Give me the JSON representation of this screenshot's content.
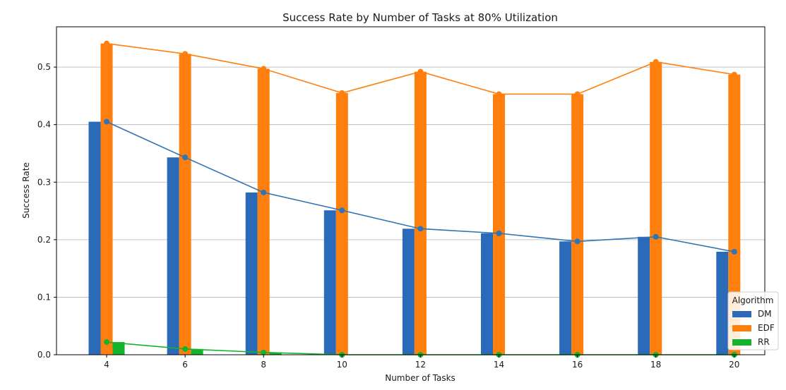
{
  "chart_data": {
    "type": "bar",
    "title": "Success Rate by Number of Tasks at 80% Utilization",
    "xlabel": "Number of Tasks",
    "ylabel": "Success Rate",
    "categories": [
      "4",
      "6",
      "8",
      "10",
      "12",
      "14",
      "16",
      "18",
      "20"
    ],
    "ylim": [
      0,
      0.57
    ],
    "yticks": [
      "0.0",
      "0.1",
      "0.2",
      "0.3",
      "0.4",
      "0.5"
    ],
    "grid": "horizontal",
    "legend": {
      "title": "Algorithm",
      "placement": "bottom-right"
    },
    "series": [
      {
        "name": "DM",
        "color": "#2a6ab8",
        "line_color": "#2f74b5",
        "values": [
          0.405,
          0.343,
          0.282,
          0.251,
          0.219,
          0.211,
          0.197,
          0.205,
          0.179
        ]
      },
      {
        "name": "EDF",
        "color": "#ff7f0e",
        "line_color": "#ff7f0e",
        "values": [
          0.541,
          0.523,
          0.497,
          0.455,
          0.492,
          0.453,
          0.453,
          0.509,
          0.487
        ]
      },
      {
        "name": "RR",
        "color": "#13b32d",
        "line_color": "#13b32d",
        "values": [
          0.022,
          0.01,
          0.004,
          0.0,
          0.0,
          0.0,
          0.0,
          0.0,
          0.0
        ]
      }
    ]
  }
}
